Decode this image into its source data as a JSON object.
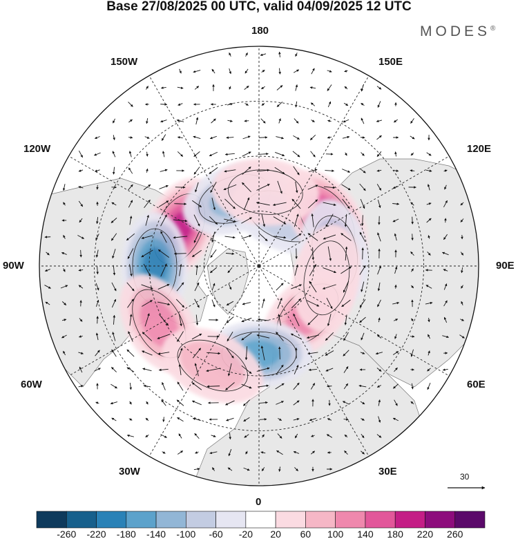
{
  "title": "Base 27/08/2025 00 UTC, valid 04/09/2025 12 UTC",
  "brand": "MODES",
  "brand_mark": "®",
  "longitude_labels": {
    "top": "180",
    "upper_left": "150W",
    "upper_right": "150E",
    "left_upper": "120W",
    "right_upper": "120E",
    "left": "90W",
    "right": "90E",
    "left_lower": "60W",
    "right_lower": "60E",
    "lower_left": "30W",
    "lower_right": "30E",
    "bottom": "0"
  },
  "reference_vector": "30",
  "colorbar": {
    "labels": [
      "-260",
      "-220",
      "-180",
      "-140",
      "-100",
      "-60",
      "-20",
      "20",
      "60",
      "100",
      "140",
      "180",
      "220",
      "260"
    ],
    "colors": [
      "#0e3a5c",
      "#17608c",
      "#2a82b7",
      "#5ca2cb",
      "#92b6d6",
      "#c3cce2",
      "#e6e6f2",
      "#ffffff",
      "#fbdbe2",
      "#f6b7c6",
      "#ef88ad",
      "#e2579a",
      "#c41e86",
      "#8d0d7c",
      "#5b0a6a"
    ]
  },
  "anomaly_centers": [
    {
      "lon": -115,
      "colat": 32,
      "value": 200
    },
    {
      "lon": -90,
      "colat": 38,
      "value": -200
    },
    {
      "lon": -60,
      "colat": 42,
      "value": 150
    },
    {
      "lon": -160,
      "colat": 26,
      "value": -140
    },
    {
      "lon": 155,
      "colat": 20,
      "value": -110
    },
    {
      "lon": 125,
      "colat": 30,
      "value": 210
    },
    {
      "lon": 100,
      "colat": 28,
      "value": -100
    },
    {
      "lon": 45,
      "colat": 25,
      "value": 150
    },
    {
      "lon": 0,
      "colat": 32,
      "value": -180
    },
    {
      "lon": 175,
      "colat": 27,
      "value": 60
    },
    {
      "lon": -25,
      "colat": 40,
      "value": 80
    },
    {
      "lon": 80,
      "colat": 25,
      "value": 60
    }
  ]
}
